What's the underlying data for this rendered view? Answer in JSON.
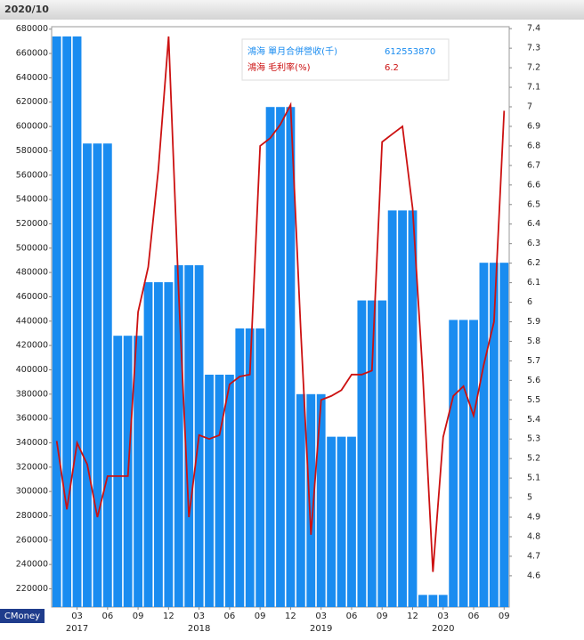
{
  "chart_data": {
    "type": "bar_line",
    "title": "2020/10",
    "source": "CMoney",
    "categories": [
      null,
      null,
      "03",
      null,
      null,
      "06",
      null,
      null,
      "09",
      null,
      null,
      "12",
      null,
      null,
      "03",
      null,
      null,
      "06",
      null,
      null,
      "09",
      null,
      null,
      "12",
      null,
      null,
      "03",
      null,
      null,
      "06",
      null,
      null,
      "09",
      null,
      null,
      "12",
      null,
      null,
      "03",
      null,
      null,
      "06",
      null,
      null,
      "09"
    ],
    "years": [
      "2017",
      "2018",
      "2019",
      "2020"
    ],
    "series": [
      {
        "name": "鴻海 單月合併營收(千)",
        "legend_value": "612553870",
        "color": "#1a8cf0",
        "type": "bar",
        "values": [
          674000,
          674000,
          674000,
          586000,
          586000,
          586000,
          428000,
          428000,
          428000,
          472000,
          472000,
          472000,
          486000,
          486000,
          486000,
          396000,
          396000,
          396000,
          434000,
          434000,
          434000,
          616000,
          616000,
          616000,
          380000,
          380000,
          380000,
          345000,
          345000,
          345000,
          457000,
          457000,
          457000,
          531000,
          531000,
          531000,
          215000,
          215000,
          215000,
          441000,
          441000,
          441000,
          488000,
          488000,
          488000
        ]
      },
      {
        "name": "鴻海 毛利率(%)",
        "legend_value": "6.2",
        "color": "#cc1111",
        "type": "line",
        "axis": "y2",
        "values": [
          5.29,
          4.94,
          5.28,
          5.17,
          4.9,
          5.11,
          5.11,
          5.11,
          5.95,
          6.18,
          6.68,
          7.36,
          6.04,
          4.9,
          5.32,
          5.3,
          5.32,
          5.58,
          5.62,
          5.63,
          6.8,
          6.84,
          6.91,
          7.01,
          5.86,
          4.81,
          5.5,
          5.52,
          5.55,
          5.63,
          5.63,
          5.65,
          6.82,
          6.86,
          6.9,
          6.48,
          5.63,
          4.62,
          5.31,
          5.52,
          5.57,
          5.42,
          5.68,
          5.9,
          6.98
        ]
      }
    ],
    "ylim": [
      205000,
      682000
    ],
    "yticks": [
      220000,
      240000,
      260000,
      280000,
      300000,
      320000,
      340000,
      360000,
      380000,
      400000,
      420000,
      440000,
      460000,
      480000,
      500000,
      520000,
      540000,
      560000,
      580000,
      600000,
      620000,
      640000,
      660000,
      680000
    ],
    "y2lim": [
      4.44,
      7.41
    ],
    "y2ticks": [
      4.6,
      4.7,
      4.8,
      4.9,
      5,
      5.1,
      5.2,
      5.3,
      5.4,
      5.5,
      5.6,
      5.7,
      5.8,
      5.9,
      6,
      6.1,
      6.2,
      6.3,
      6.4,
      6.5,
      6.6,
      6.7,
      6.8,
      6.9,
      7,
      7.1,
      7.2,
      7.3,
      7.4
    ]
  }
}
